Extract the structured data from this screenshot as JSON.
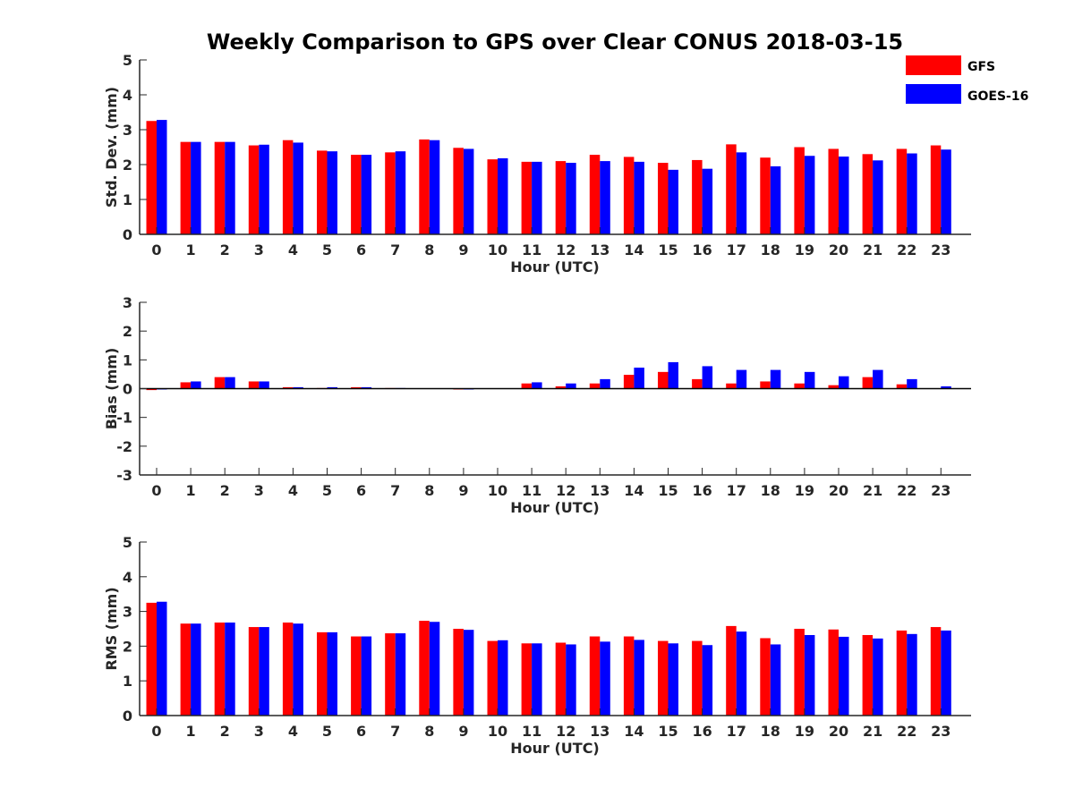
{
  "title": "Weekly Comparison to GPS over Clear CONUS 2018-03-15",
  "legend": {
    "placement": "top-right",
    "items": [
      {
        "label": "GFS",
        "color": "#ff0000"
      },
      {
        "label": "GOES-16",
        "color": "#0000ff"
      }
    ]
  },
  "chart_data": [
    {
      "type": "bar",
      "xlabel": "Hour (UTC)",
      "ylabel": "Std. Dev. (mm)",
      "ylim": [
        0,
        5
      ],
      "yticks": [
        "0",
        "1",
        "2",
        "3",
        "4",
        "5"
      ],
      "categories": [
        "0",
        "1",
        "2",
        "3",
        "4",
        "5",
        "6",
        "7",
        "8",
        "9",
        "10",
        "11",
        "12",
        "13",
        "14",
        "15",
        "16",
        "17",
        "18",
        "19",
        "20",
        "21",
        "22",
        "23"
      ],
      "series": [
        {
          "name": "GFS",
          "color": "#ff0000",
          "values": [
            3.25,
            2.65,
            2.65,
            2.55,
            2.7,
            2.4,
            2.28,
            2.35,
            2.72,
            2.48,
            2.15,
            2.08,
            2.1,
            2.28,
            2.22,
            2.05,
            2.13,
            2.58,
            2.2,
            2.5,
            2.45,
            2.3,
            2.45,
            2.55
          ]
        },
        {
          "name": "GOES-16",
          "color": "#0000ff",
          "values": [
            3.28,
            2.65,
            2.65,
            2.57,
            2.63,
            2.38,
            2.28,
            2.38,
            2.7,
            2.45,
            2.18,
            2.08,
            2.05,
            2.1,
            2.08,
            1.85,
            1.88,
            2.35,
            1.95,
            2.25,
            2.23,
            2.12,
            2.32,
            2.43
          ]
        }
      ]
    },
    {
      "type": "bar",
      "xlabel": "Hour (UTC)",
      "ylabel": "Bias (mm)",
      "ylim": [
        -3,
        3
      ],
      "yticks": [
        "-3",
        "-2",
        "-1",
        "0",
        "1",
        "2",
        "3"
      ],
      "categories": [
        "0",
        "1",
        "2",
        "3",
        "4",
        "5",
        "6",
        "7",
        "8",
        "9",
        "10",
        "11",
        "12",
        "13",
        "14",
        "15",
        "16",
        "17",
        "18",
        "19",
        "20",
        "21",
        "22",
        "23"
      ],
      "series": [
        {
          "name": "GFS",
          "color": "#ff0000",
          "values": [
            -0.05,
            0.22,
            0.4,
            0.25,
            0.05,
            0.02,
            0.05,
            0.02,
            0.0,
            -0.03,
            0.0,
            0.18,
            0.08,
            0.18,
            0.48,
            0.58,
            0.33,
            0.18,
            0.25,
            0.18,
            0.12,
            0.4,
            0.15,
            0.0
          ]
        },
        {
          "name": "GOES-16",
          "color": "#0000ff",
          "values": [
            -0.03,
            0.25,
            0.4,
            0.25,
            0.05,
            0.05,
            0.05,
            0.02,
            0.0,
            -0.03,
            0.0,
            0.22,
            0.18,
            0.33,
            0.73,
            0.92,
            0.78,
            0.65,
            0.65,
            0.58,
            0.43,
            0.65,
            0.33,
            0.08
          ]
        }
      ]
    },
    {
      "type": "bar",
      "xlabel": "Hour (UTC)",
      "ylabel": "RMS (mm)",
      "ylim": [
        0,
        5
      ],
      "yticks": [
        "0",
        "1",
        "2",
        "3",
        "4",
        "5"
      ],
      "categories": [
        "0",
        "1",
        "2",
        "3",
        "4",
        "5",
        "6",
        "7",
        "8",
        "9",
        "10",
        "11",
        "12",
        "13",
        "14",
        "15",
        "16",
        "17",
        "18",
        "19",
        "20",
        "21",
        "22",
        "23"
      ],
      "series": [
        {
          "name": "GFS",
          "color": "#ff0000",
          "values": [
            3.25,
            2.65,
            2.68,
            2.55,
            2.68,
            2.4,
            2.28,
            2.37,
            2.73,
            2.5,
            2.15,
            2.08,
            2.1,
            2.28,
            2.28,
            2.15,
            2.15,
            2.58,
            2.23,
            2.5,
            2.48,
            2.32,
            2.45,
            2.55
          ]
        },
        {
          "name": "GOES-16",
          "color": "#0000ff",
          "values": [
            3.28,
            2.65,
            2.68,
            2.55,
            2.65,
            2.4,
            2.28,
            2.37,
            2.7,
            2.47,
            2.17,
            2.08,
            2.05,
            2.13,
            2.18,
            2.08,
            2.03,
            2.42,
            2.05,
            2.32,
            2.27,
            2.22,
            2.35,
            2.45
          ]
        }
      ]
    }
  ]
}
